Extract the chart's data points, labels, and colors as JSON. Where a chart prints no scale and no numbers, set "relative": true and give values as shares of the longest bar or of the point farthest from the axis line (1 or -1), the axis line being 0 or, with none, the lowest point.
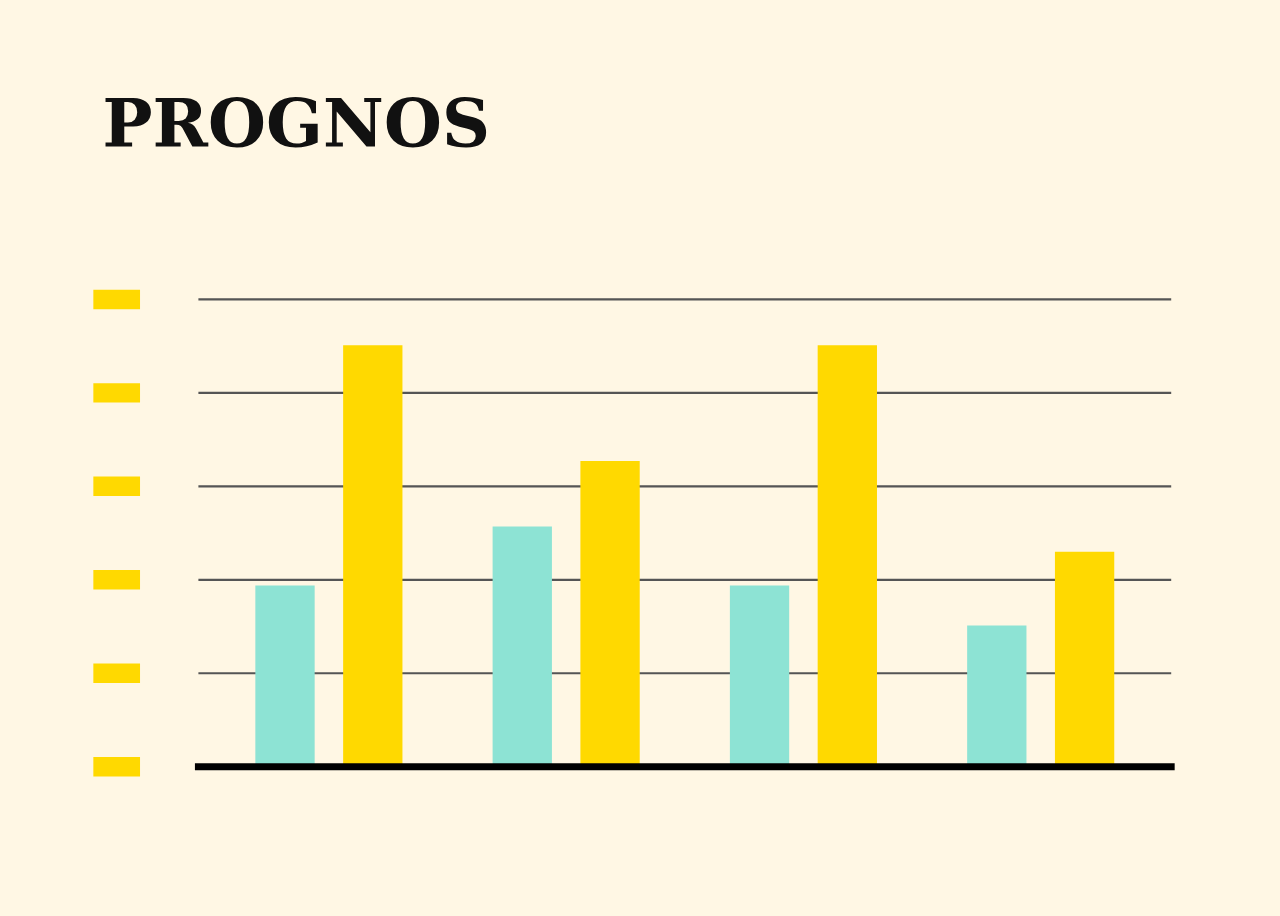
{
  "chart_data": {
    "type": "bar",
    "title": "PROGNOS",
    "relative": true,
    "categories": [
      null,
      null,
      null,
      null
    ],
    "series": [
      {
        "color": "#8de3d4",
        "values": [
          0.43,
          0.57,
          0.43,
          0.335
        ]
      },
      {
        "color": "#ffd900",
        "values": [
          1,
          0.725,
          1,
          0.51
        ]
      }
    ],
    "grid": "y",
    "legend": false
  }
}
